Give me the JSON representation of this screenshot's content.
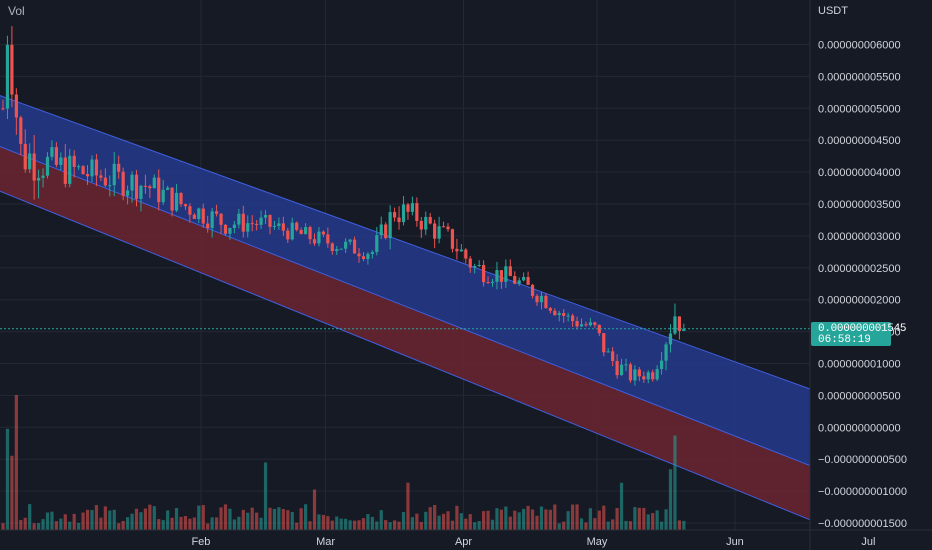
{
  "header": {
    "volume_label": "Vol",
    "currency": "USDT"
  },
  "colors": {
    "background": "#161a25",
    "up": "#26a69a",
    "down": "#ef5350",
    "channel_upper_fill": "#233a8c",
    "channel_lower_fill": "#6b2630",
    "channel_line": "#3f5fe0",
    "grid": "#242834",
    "axis_text": "#d1d4dc"
  },
  "price_badge": {
    "price": "0.000000001545",
    "countdown": "06:58:19"
  },
  "chart_data": {
    "type": "candlestick",
    "title": "",
    "xlabel": "",
    "ylabel": "",
    "x_ticks": [
      "Feb",
      "Mar",
      "Apr",
      "May",
      "Jun",
      "Jul"
    ],
    "y_ticks": [
      "0.000000006000",
      "0.000000005500",
      "0.000000005000",
      "0.000000004500",
      "0.000000004000",
      "0.000000003500",
      "0.000000003000",
      "0.000000002500",
      "0.000000002000",
      "0.000000001500",
      "0.000000001000",
      "0.000000000500",
      "0.000000000000",
      "−0.000000000500",
      "−0.000000001000",
      "−0.000000001500"
    ],
    "ylim_e9": [
      -1.6,
      6.5
    ],
    "grid": true,
    "last_price_e9": 1.545,
    "channel_e9": {
      "dates": [
        "Jan 01",
        "Jul 28"
      ],
      "upper": [
        5.2,
        0.6
      ],
      "middle": [
        4.4,
        -0.6
      ],
      "lower": [
        3.7,
        -1.45
      ]
    },
    "candles_e9": {
      "anchors": [
        [
          "Jan 01",
          5.0,
          0.3
        ],
        [
          "Jan 02",
          6.2,
          0.4
        ],
        [
          "Jan 05",
          4.3,
          0.45
        ],
        [
          "Jan 12",
          4.1,
          0.3
        ],
        [
          "Jan 22",
          3.95,
          0.25
        ],
        [
          "Feb 02",
          3.8,
          0.25
        ],
        [
          "Feb 10",
          3.5,
          0.2
        ],
        [
          "Feb 20",
          3.2,
          0.2
        ],
        [
          "Feb 28",
          3.2,
          0.15
        ],
        [
          "Mar 10",
          3.0,
          0.15
        ],
        [
          "Mar 18",
          2.85,
          0.15
        ],
        [
          "Mar 25",
          2.75,
          0.15
        ],
        [
          "Mar 30",
          3.4,
          0.25
        ],
        [
          "Apr 04",
          3.3,
          0.2
        ],
        [
          "Apr 12",
          2.9,
          0.2
        ],
        [
          "Apr 17",
          2.5,
          0.2
        ],
        [
          "Apr 25",
          2.35,
          0.15
        ],
        [
          "May 02",
          2.05,
          0.15
        ],
        [
          "May 08",
          1.7,
          0.15
        ],
        [
          "May 14",
          1.55,
          0.12
        ],
        [
          "May 17",
          1.1,
          0.2
        ],
        [
          "May 22",
          0.8,
          0.12
        ],
        [
          "May 27",
          0.85,
          0.12
        ],
        [
          "May 30",
          1.4,
          0.2
        ],
        [
          "Jun 01",
          1.8,
          0.3
        ],
        [
          "Jun 03",
          1.55,
          0.15
        ]
      ],
      "first": "Jan 01",
      "last": "Jun 03"
    },
    "volume": {
      "spikes": {
        "Jan 04": 1.0,
        "Jan 02": 0.75,
        "Jan 03": 0.55,
        "Mar 01": 0.5,
        "Mar 12": 0.3,
        "May 20": 0.35,
        "Jun 01": 0.7,
        "May 31": 0.45,
        "Apr 02": 0.35
      },
      "baseline": 0.12
    }
  }
}
